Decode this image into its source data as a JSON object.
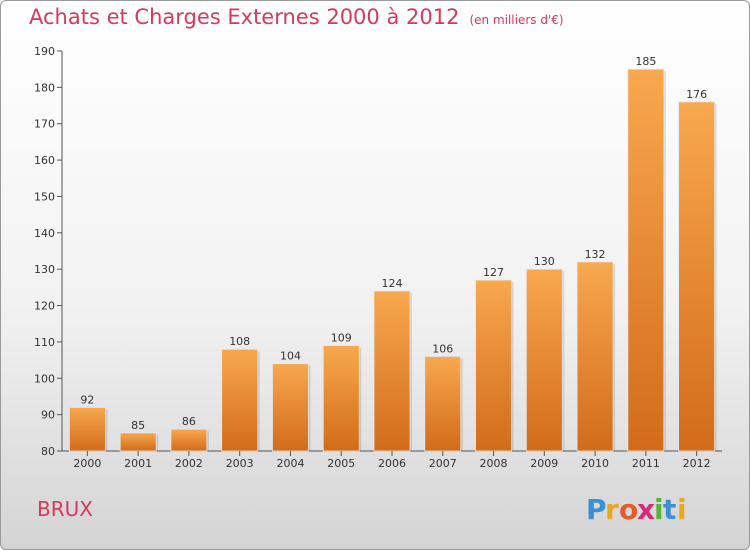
{
  "header": {
    "title": "Achats et Charges Externes 2000 à 2012",
    "unit": "(en milliers d'€)"
  },
  "footer": {
    "commune": "BRUX",
    "logo_text": "Proxiti"
  },
  "colors": {
    "title": "#d63a5a",
    "bar_light": "#f8a84e",
    "bar_dark": "#d26b1a",
    "axis": "#555555"
  },
  "chart_data": {
    "type": "bar",
    "title": "Achats et Charges Externes 2000 à 2012",
    "subtitle": "(en milliers d'€)",
    "xlabel": "",
    "ylabel": "",
    "categories": [
      "2000",
      "2001",
      "2002",
      "2003",
      "2004",
      "2005",
      "2006",
      "2007",
      "2008",
      "2009",
      "2010",
      "2011",
      "2012"
    ],
    "values": [
      92,
      85,
      86,
      108,
      104,
      109,
      124,
      106,
      127,
      130,
      132,
      185,
      176
    ],
    "data_labels": [
      "92",
      "85",
      "86",
      "108",
      "104",
      "109",
      "124",
      "106",
      "127",
      "130",
      "132",
      "185",
      "176"
    ],
    "ylim": [
      80,
      190
    ],
    "yticks": [
      "80",
      "90",
      "100",
      "110",
      "120",
      "130",
      "140",
      "150",
      "160",
      "170",
      "180",
      "190"
    ],
    "grid": false,
    "legend": "none"
  }
}
